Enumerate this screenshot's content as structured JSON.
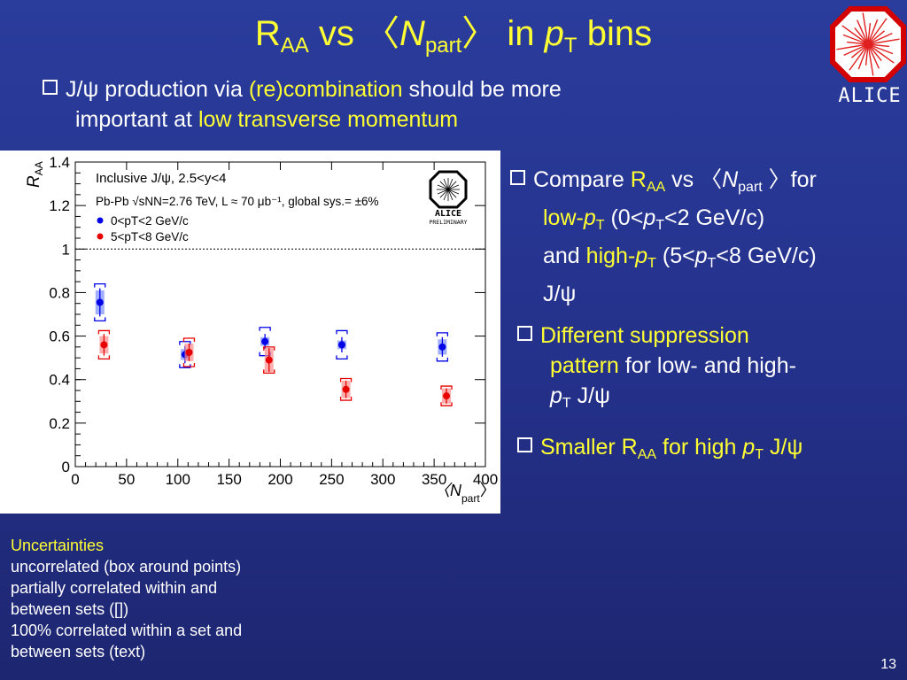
{
  "slide": {
    "title_parts": [
      "R",
      "AA",
      " vs 〈",
      "N",
      "part",
      "〉 in ",
      "p",
      "T",
      " bins"
    ],
    "page_number": "13",
    "logo_text": "ALICE"
  },
  "top_bullet": {
    "line1_a": "J/ψ production via ",
    "line1_b": "(re)combination",
    "line1_c": " should be more",
    "line2_a": "important at ",
    "line2_b": "low transverse momentum"
  },
  "right_bullets": {
    "b1": {
      "a": "Compare ",
      "b": "R",
      "b_sub": "AA",
      "c": " vs 〈",
      "d": "N",
      "d_sub": "part",
      "e": " 〉for",
      "f": "low-",
      "g": "p",
      "g_sub": "T",
      "h": " (0<",
      "i": "p",
      "i_sub": "T",
      "j": "<2 GeV/c)",
      "k": "and ",
      "l": "high-",
      "m": "p",
      "m_sub": "T",
      "n": " (5<",
      "o": "p",
      "o_sub": "T",
      "p2": "<8 GeV/c)",
      "q": "J/ψ"
    },
    "b2": {
      "a": "Different suppression",
      "b": "pattern",
      "c": " for low- and high-",
      "d": "p",
      "d_sub": "T",
      "e": " J/ψ"
    },
    "b3": {
      "a": "Smaller R",
      "a_sub": "AA",
      "b": " for high ",
      "c": "p",
      "c_sub": "T",
      "d": " J/ψ"
    }
  },
  "notes": {
    "head": "Uncertainties",
    "l1": "uncorrelated (box around points)",
    "l2": "partially correlated within and",
    "l3": "between sets ([])",
    "l4": "100% correlated within a set and",
    "l5": "between sets (text)"
  },
  "chart_data": {
    "type": "scatter",
    "xlabel": "〈N",
    "xlabel_sub": "part",
    "xlabel_end": "〉",
    "ylabel": "R",
    "ylabel_sub": "AA",
    "xlim": [
      0,
      400
    ],
    "ylim": [
      0,
      1.4
    ],
    "xticks": [
      0,
      50,
      100,
      150,
      200,
      250,
      300,
      350,
      400
    ],
    "yticks": [
      0,
      0.2,
      0.4,
      0.6,
      0.8,
      1,
      1.2,
      1.4
    ],
    "ytick_labels": [
      "0",
      "0.2",
      "0.4",
      "0.6",
      "0.8",
      "1",
      "1.2",
      "1.4"
    ],
    "reference_line_y": 1,
    "annotations": {
      "line1": "Inclusive J/ψ, 2.5<y<4",
      "line2": "Pb-Pb √sNN=2.76 TeV, L ≈ 70 μb⁻¹, global sys.= ±6%",
      "logo_word": "ALICE",
      "logo_sub": "PRELIMINARY"
    },
    "legend": [
      {
        "label": "0<pT<2 GeV/c",
        "color": "#0000e6"
      },
      {
        "label": "5<pT<8 GeV/c",
        "color": "#e60000"
      }
    ],
    "series": [
      {
        "name": "0<pT<2 GeV/c",
        "color": "#0000e6",
        "box_color": "#7a8cff",
        "points": [
          {
            "x": 24,
            "y": 0.755,
            "stat": 0.065,
            "box": 0.055,
            "corr": 0.085
          },
          {
            "x": 107,
            "y": 0.515,
            "stat": 0.04,
            "box": 0.025,
            "corr": 0.06
          },
          {
            "x": 185,
            "y": 0.575,
            "stat": 0.035,
            "box": 0.02,
            "corr": 0.065
          },
          {
            "x": 260,
            "y": 0.56,
            "stat": 0.035,
            "box": 0.02,
            "corr": 0.065
          },
          {
            "x": 358,
            "y": 0.55,
            "stat": 0.045,
            "box": 0.035,
            "corr": 0.065
          }
        ]
      },
      {
        "name": "5<pT<8 GeV/c",
        "color": "#e60000",
        "box_color": "#ff8a8a",
        "points": [
          {
            "x": 28,
            "y": 0.56,
            "stat": 0.05,
            "box": 0.04,
            "corr": 0.065
          },
          {
            "x": 111,
            "y": 0.525,
            "stat": 0.04,
            "box": 0.04,
            "corr": 0.065
          },
          {
            "x": 189,
            "y": 0.49,
            "stat": 0.055,
            "box": 0.055,
            "corr": 0.06
          },
          {
            "x": 264,
            "y": 0.355,
            "stat": 0.04,
            "box": 0.04,
            "corr": 0.05
          },
          {
            "x": 362,
            "y": 0.325,
            "stat": 0.035,
            "box": 0.035,
            "corr": 0.045
          }
        ]
      }
    ]
  }
}
